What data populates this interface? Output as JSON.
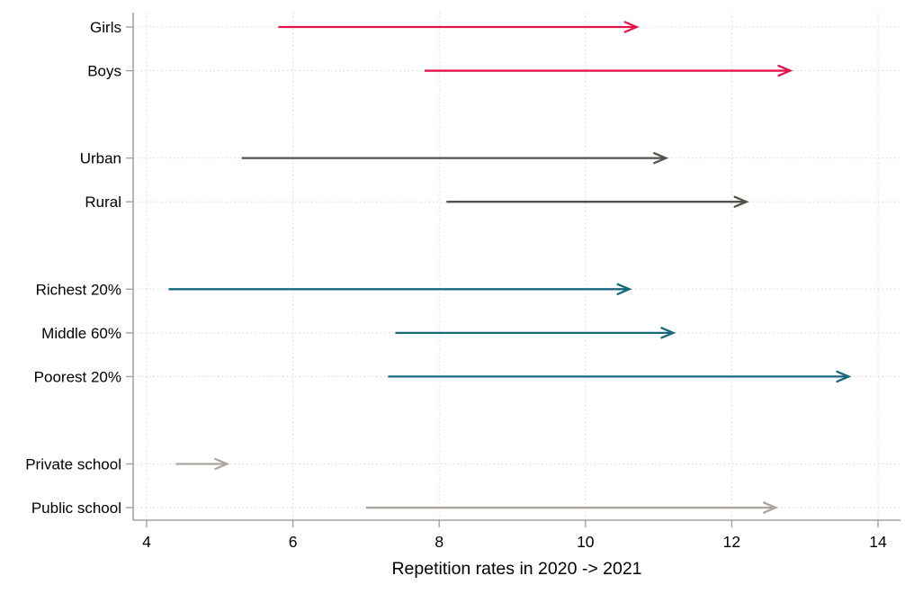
{
  "figure": {
    "background_color": "#ffffff"
  },
  "chart_data": {
    "type": "arrow",
    "description": "Paired-point arrow (dumbbell) chart; each arrow runs from the 2020 value to the 2021 value",
    "title": "",
    "xlabel": "Repetition rates in 2020 -> 2021",
    "ylabel": "",
    "xlim": [
      3.8,
      14.3
    ],
    "xticks": [
      4,
      6,
      8,
      10,
      12,
      14
    ],
    "grid": "dotted vertical at x ticks and dotted horizontal at each category row",
    "legend": "none",
    "categories": [
      "Girls",
      "Boys",
      "Urban",
      "Rural",
      "Richest 20%",
      "Middle 60%",
      "Poorest 20%",
      "Private school",
      "Public school"
    ],
    "row_slots": [
      0,
      1,
      3,
      4,
      6,
      7,
      8,
      10,
      11
    ],
    "series": [
      {
        "name": "2020 (arrow start)",
        "values": [
          5.8,
          7.8,
          5.3,
          8.1,
          4.3,
          7.4,
          7.3,
          4.4,
          7.0
        ]
      },
      {
        "name": "2021 (arrow end)",
        "values": [
          10.7,
          12.8,
          11.1,
          12.2,
          10.6,
          11.2,
          13.6,
          5.1,
          12.6
        ]
      }
    ],
    "category_colors": [
      "#e31449",
      "#e31449",
      "#56514b",
      "#56514b",
      "#18697e",
      "#18697e",
      "#18697e",
      "#aca59d",
      "#aca59d"
    ],
    "group_color_legend": {
      "gender": "#e31449",
      "location": "#56514b",
      "wealth": "#18697e",
      "school_type": "#aca59d"
    },
    "style": {
      "axis_color": "#a3a3a3",
      "grid_color": "#d2d2d2",
      "label_color": "#000000"
    }
  }
}
